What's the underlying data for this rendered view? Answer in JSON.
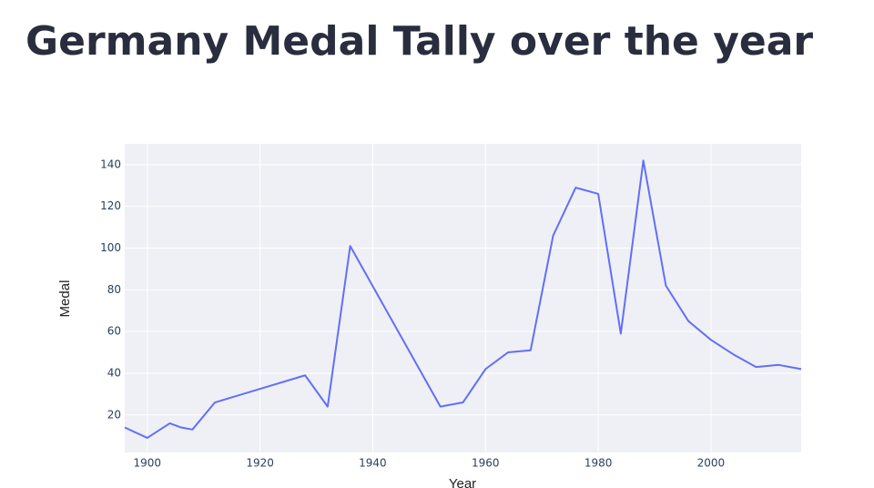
{
  "chart_data": {
    "type": "line",
    "title": "Germany Medal Tally over the year",
    "x_label": "Year",
    "y_label": "Medal",
    "x": [
      1896,
      1900,
      1904,
      1906,
      1908,
      1912,
      1928,
      1932,
      1936,
      1952,
      1956,
      1960,
      1964,
      1968,
      1972,
      1976,
      1980,
      1984,
      1988,
      1992,
      1996,
      2000,
      2004,
      2008,
      2012,
      2016
    ],
    "values": [
      14,
      9,
      16,
      14,
      13,
      26,
      39,
      24,
      101,
      24,
      26,
      42,
      50,
      51,
      106,
      129,
      126,
      59,
      142,
      82,
      65,
      56,
      49,
      43,
      44,
      42
    ],
    "color": "#636efa",
    "xlim": [
      1896,
      2016
    ],
    "xticks": [
      1900,
      1920,
      1940,
      1960,
      1980,
      2000
    ],
    "ylim": [
      2,
      150
    ],
    "yticks": [
      20,
      40,
      60,
      80,
      100,
      120,
      140
    ],
    "grid": true
  }
}
